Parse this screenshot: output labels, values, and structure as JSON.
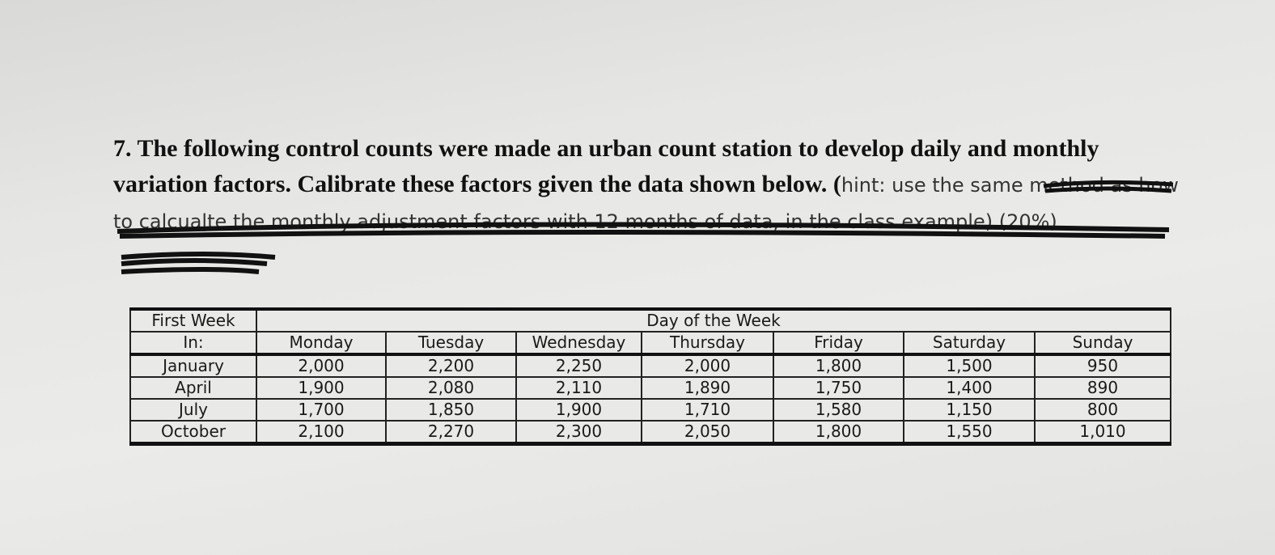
{
  "question": {
    "number": "7.",
    "text": "The following control counts were made an urban count station to develop daily and monthly variation factors. Calibrate these factors given the data shown below. (",
    "struck_text": "hint: use the same method as how to calcualte the monthly adjustment factors with 12 months of data, in the class example) (20%)"
  },
  "table": {
    "corner_header": [
      "First Week",
      "In:"
    ],
    "group_header": "Day of the Week",
    "columns": [
      "Monday",
      "Tuesday",
      "Wednesday",
      "Thursday",
      "Friday",
      "Saturday",
      "Sunday"
    ],
    "rows": [
      [
        "January",
        "2,000",
        "2,200",
        "2,250",
        "2,000",
        "1,800",
        "1,500",
        "950"
      ],
      [
        "April",
        "1,900",
        "2,080",
        "2,110",
        "1,890",
        "1,750",
        "1,400",
        "890"
      ],
      [
        "July",
        "1,700",
        "1,850",
        "1,900",
        "1,710",
        "1,580",
        "1,150",
        "800"
      ],
      [
        "October",
        "2,100",
        "2,270",
        "2,300",
        "2,050",
        "1,800",
        "1,550",
        "1,010"
      ]
    ]
  }
}
